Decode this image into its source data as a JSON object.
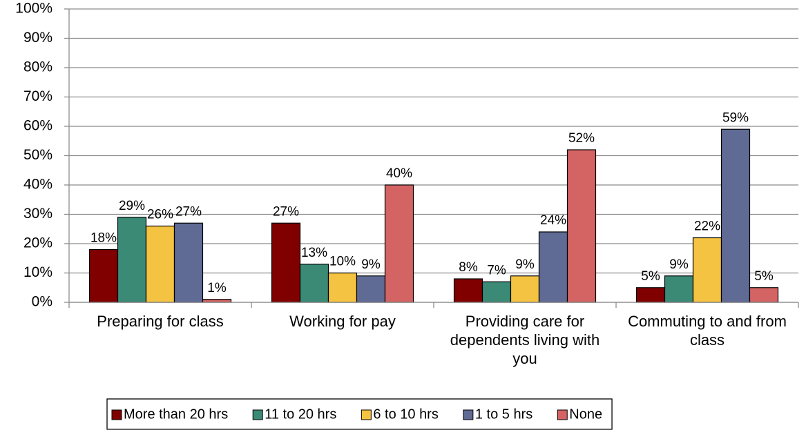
{
  "chart_data": {
    "type": "bar",
    "categories": [
      "Preparing for class",
      "Working for pay",
      "Providing care for dependents living with you",
      "Commuting to and from class"
    ],
    "series": [
      {
        "name": "More than 20 hrs",
        "color": "#800000",
        "values": [
          18,
          27,
          8,
          5
        ],
        "value_labels": [
          "18%",
          "27%",
          "8%",
          "5%"
        ]
      },
      {
        "name": "11 to 20 hrs",
        "color": "#3a8a76",
        "values": [
          29,
          13,
          7,
          9
        ],
        "value_labels": [
          "29%",
          "13%",
          "7%",
          "9%"
        ]
      },
      {
        "name": "6 to 10 hrs",
        "color": "#f5c342",
        "values": [
          26,
          10,
          9,
          22
        ],
        "value_labels": [
          "26%",
          "10%",
          "9%",
          "22%"
        ]
      },
      {
        "name": "1 to 5 hrs",
        "color": "#5f6b94",
        "values": [
          27,
          9,
          24,
          59
        ],
        "value_labels": [
          "27%",
          "9%",
          "24%",
          "59%"
        ]
      },
      {
        "name": "None",
        "color": "#d46464",
        "values": [
          1,
          40,
          52,
          5
        ],
        "value_labels": [
          "1%",
          "40%",
          "52%",
          "5%"
        ]
      }
    ],
    "ylim": [
      0,
      100
    ],
    "yticks": [
      {
        "value": 0,
        "label": "0%"
      },
      {
        "value": 10,
        "label": "10%"
      },
      {
        "value": 20,
        "label": "20%"
      },
      {
        "value": 30,
        "label": "30%"
      },
      {
        "value": 40,
        "label": "40%"
      },
      {
        "value": 50,
        "label": "50%"
      },
      {
        "value": 60,
        "label": "60%"
      },
      {
        "value": 70,
        "label": "70%"
      },
      {
        "value": 80,
        "label": "80%"
      },
      {
        "value": 90,
        "label": "90%"
      },
      {
        "value": 100,
        "label": "100%"
      }
    ],
    "grid": true,
    "legend": "bottom"
  }
}
